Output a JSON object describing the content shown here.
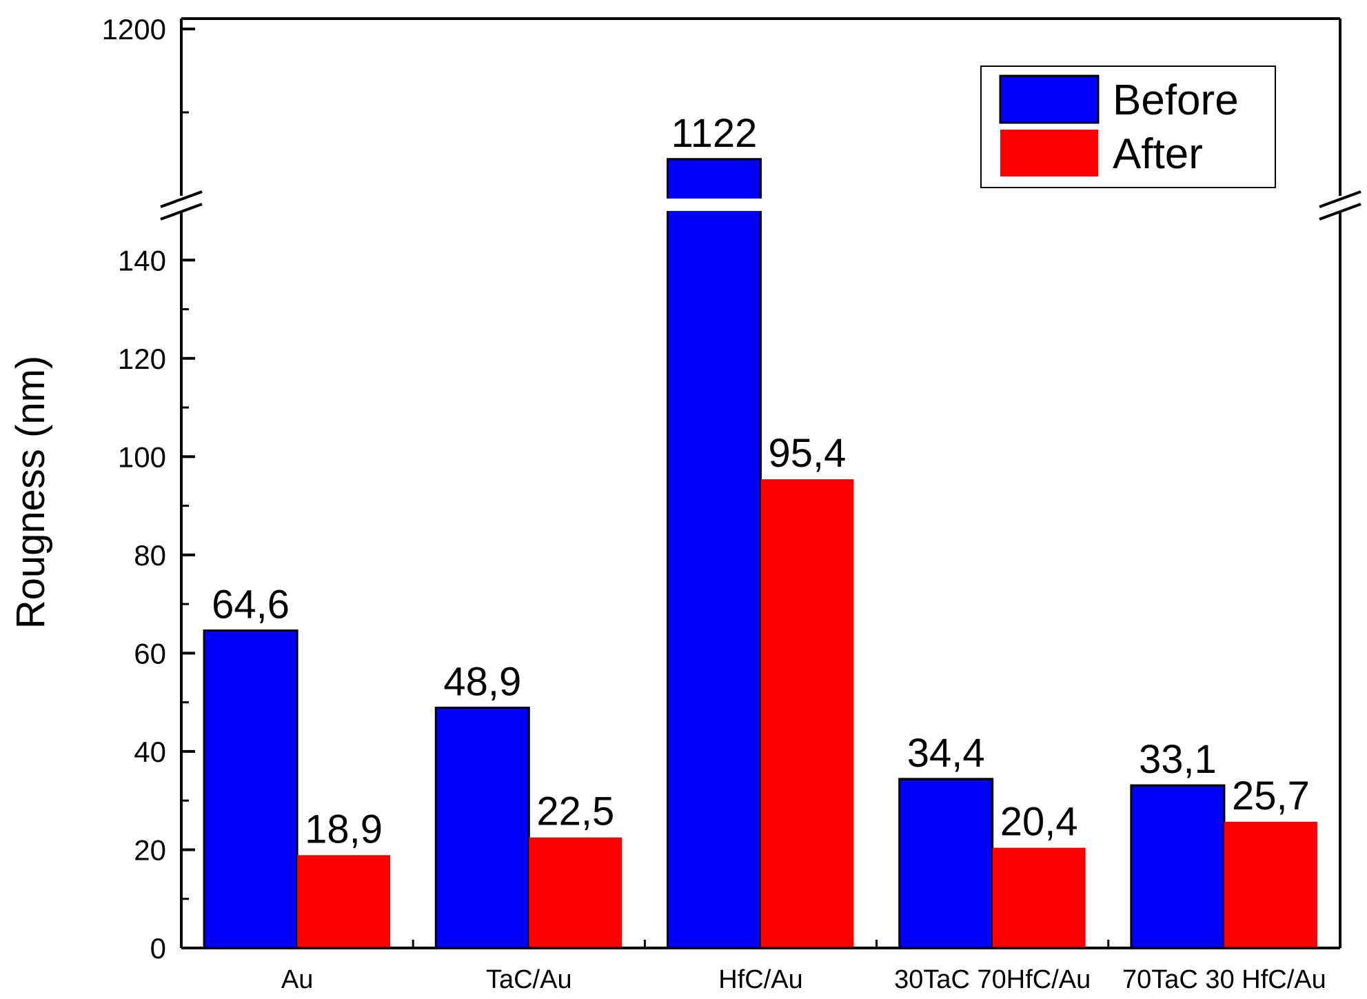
{
  "chart_data": {
    "type": "bar",
    "categories": [
      "Au",
      "TaC/Au",
      "HfC/Au",
      "30TaC 70HfC/Au",
      "70TaC 30 HfC/Au"
    ],
    "series": [
      {
        "name": "Before",
        "color": "#0000ff",
        "values": [
          64.6,
          48.9,
          1122,
          34.4,
          33.1
        ],
        "labels": [
          "64,6",
          "48,9",
          "1122",
          "34,4",
          "33,1"
        ]
      },
      {
        "name": "After",
        "color": "#ff0000",
        "values": [
          18.9,
          22.5,
          95.4,
          20.4,
          25.7
        ],
        "labels": [
          "18,9",
          "22,5",
          "95,4",
          "20,4",
          "25,7"
        ]
      }
    ],
    "xlabel": "",
    "ylabel": "Rougness (nm)",
    "ylim": [
      0,
      1200
    ],
    "y_axis_break": [
      150,
      1100
    ],
    "y_ticks_lower": [
      0,
      20,
      40,
      60,
      80,
      100,
      120,
      140
    ],
    "y_ticks_upper": [
      1200
    ],
    "legend_position": "top-right",
    "grid": false
  }
}
